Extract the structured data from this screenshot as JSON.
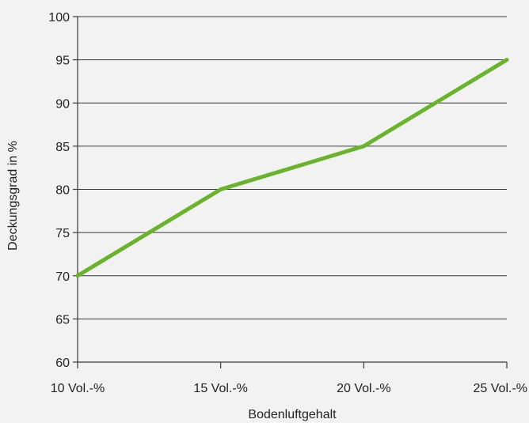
{
  "chart_data": {
    "type": "line",
    "title": "",
    "xlabel": "Bodenluftgehalt",
    "ylabel": "Deckungsgrad in %",
    "categories": [
      "10 Vol.-%",
      "15 Vol.-%",
      "20 Vol.-%",
      "25 Vol.-%"
    ],
    "series": [
      {
        "values": [
          70,
          80,
          85,
          95
        ],
        "color": "#6ab42d"
      }
    ],
    "ylim": [
      60,
      100
    ],
    "yticks": [
      60,
      65,
      70,
      75,
      80,
      85,
      90,
      95,
      100
    ],
    "grid": "horizontal",
    "legend": "none",
    "colors": {
      "background": "#f2f2f2",
      "gridline": "#3a3a3a",
      "text": "#222222"
    }
  }
}
